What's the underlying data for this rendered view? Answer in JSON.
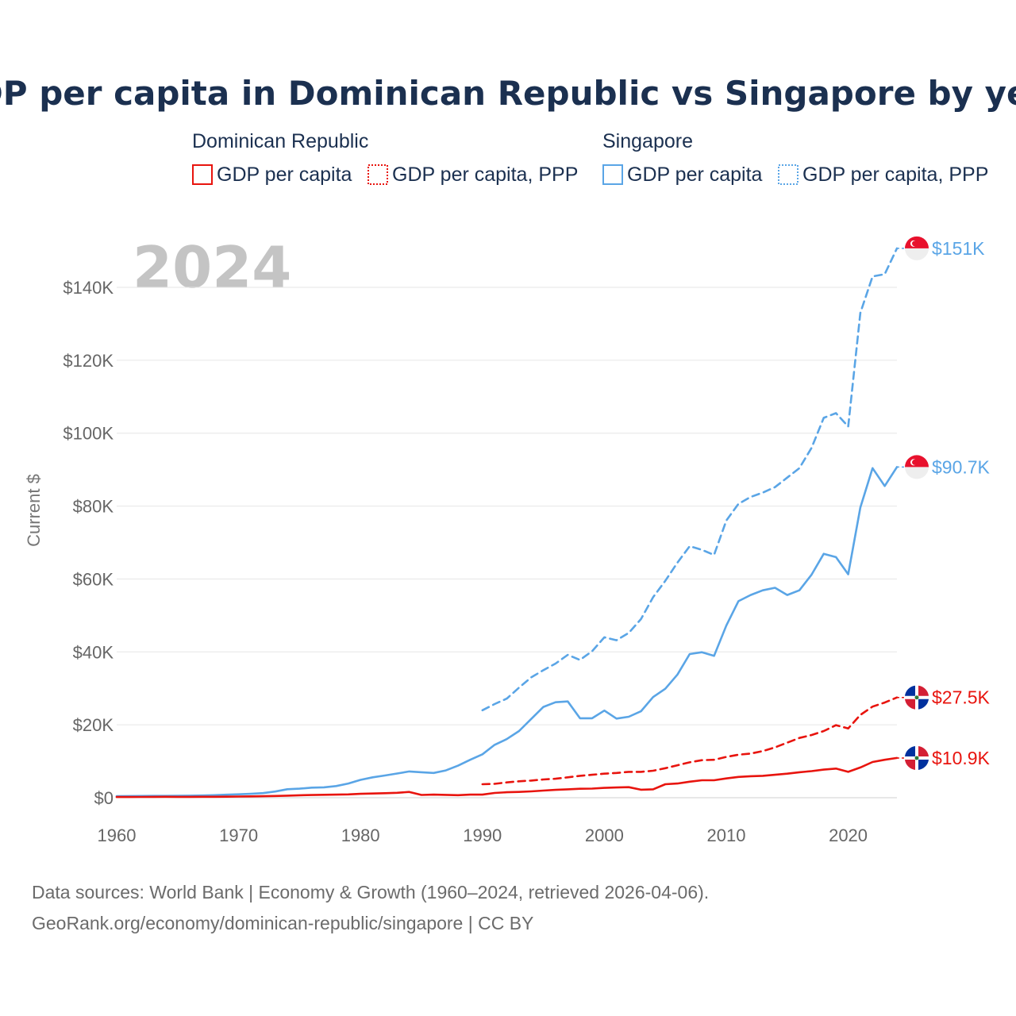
{
  "chart_data": {
    "type": "line",
    "title": "GDP per capita in Dominican Republic vs Singapore by year",
    "year_label": "2024",
    "ylabel": "Current $",
    "xlabel": "",
    "xlim": [
      1960,
      2024
    ],
    "ylim": [
      0,
      150000
    ],
    "x_ticks": [
      1960,
      1970,
      1980,
      1990,
      2000,
      2010,
      2020
    ],
    "x_tick_labels": [
      "1960",
      "1970",
      "1980",
      "1990",
      "2000",
      "2010",
      "2020"
    ],
    "y_ticks": [
      0,
      20000,
      40000,
      60000,
      80000,
      100000,
      120000,
      140000
    ],
    "y_tick_labels": [
      "$0",
      "$20K",
      "$40K",
      "$60K",
      "$80K",
      "$100K",
      "$120K",
      "$140K"
    ],
    "grid": true,
    "legend": {
      "groups": [
        {
          "name": "Dominican Republic",
          "color": "#e8140e",
          "items": [
            {
              "label": "GDP per capita",
              "style": "solid"
            },
            {
              "label": "GDP per capita, PPP",
              "style": "dotted"
            }
          ]
        },
        {
          "name": "Singapore",
          "color": "#5aa5e6",
          "items": [
            {
              "label": "GDP per capita",
              "style": "solid"
            },
            {
              "label": "GDP per capita, PPP",
              "style": "dotted"
            }
          ]
        }
      ]
    },
    "series": [
      {
        "name": "Singapore GDP per capita, PPP",
        "country": "Singapore",
        "color": "#5aa5e6",
        "dash": true,
        "end_label": "$151K",
        "start_year": 1990,
        "values": [
          24000,
          25700,
          27200,
          30200,
          33000,
          35000,
          36800,
          39200,
          37800,
          40200,
          44000,
          43200,
          45200,
          49000,
          55000,
          59500,
          64500,
          69000,
          68000,
          66600,
          76000,
          80600,
          82500,
          83700,
          85200,
          87800,
          90400,
          96000,
          104200,
          105500,
          101800,
          133000,
          143000,
          143600,
          150700
        ]
      },
      {
        "name": "Singapore GDP per capita",
        "country": "Singapore",
        "color": "#5aa5e6",
        "dash": false,
        "end_label": "$90.7K",
        "start_year": 1960,
        "values": [
          430,
          450,
          480,
          510,
          490,
          520,
          570,
          620,
          700,
          820,
          930,
          1070,
          1260,
          1690,
          2340,
          2490,
          2760,
          2850,
          3200,
          3900,
          4900,
          5600,
          6100,
          6650,
          7200,
          7000,
          6800,
          7500,
          8800,
          10400,
          11900,
          14500,
          16100,
          18300,
          21600,
          24900,
          26200,
          26400,
          21800,
          21800,
          23900,
          21700,
          22200,
          23700,
          27600,
          29900,
          33800,
          39400,
          39900,
          38900,
          47200,
          53900,
          55600,
          56900,
          57600,
          55600,
          56900,
          61200,
          66900,
          66000,
          61300,
          79600,
          90400,
          85500,
          90700
        ]
      },
      {
        "name": "Dominican Republic GDP per capita, PPP",
        "country": "Dominican Republic",
        "color": "#e8140e",
        "dash": true,
        "end_label": "$27.5K",
        "start_year": 1990,
        "values": [
          3700,
          3800,
          4200,
          4500,
          4700,
          5000,
          5200,
          5600,
          6000,
          6300,
          6600,
          6800,
          7100,
          7100,
          7400,
          8100,
          8900,
          9700,
          10300,
          10400,
          11200,
          11800,
          12100,
          12800,
          13800,
          15100,
          16400,
          17200,
          18300,
          19900,
          19000,
          22700,
          25000,
          26100,
          27500
        ]
      },
      {
        "name": "Dominican Republic GDP per capita",
        "country": "Dominican Republic",
        "color": "#e8140e",
        "dash": false,
        "end_label": "$10.9K",
        "start_year": 1960,
        "values": [
          200,
          190,
          220,
          250,
          260,
          240,
          250,
          260,
          270,
          290,
          330,
          360,
          410,
          480,
          560,
          670,
          740,
          800,
          840,
          920,
          1060,
          1150,
          1250,
          1350,
          1600,
          760,
          850,
          780,
          700,
          840,
          850,
          1300,
          1500,
          1600,
          1750,
          1950,
          2150,
          2300,
          2450,
          2500,
          2700,
          2800,
          2900,
          2200,
          2300,
          3700,
          3900,
          4400,
          4800,
          4800,
          5300,
          5700,
          5900,
          6000,
          6300,
          6600,
          7000,
          7300,
          7700,
          8000,
          7100,
          8300,
          9800,
          10400,
          10900
        ]
      }
    ]
  },
  "footer": {
    "line1": "Data sources: World Bank | Economy & Growth (1960–2024, retrieved 2026-04-06).",
    "line2": "GeoRank.org/economy/dominican-republic/singapore | CC BY"
  }
}
